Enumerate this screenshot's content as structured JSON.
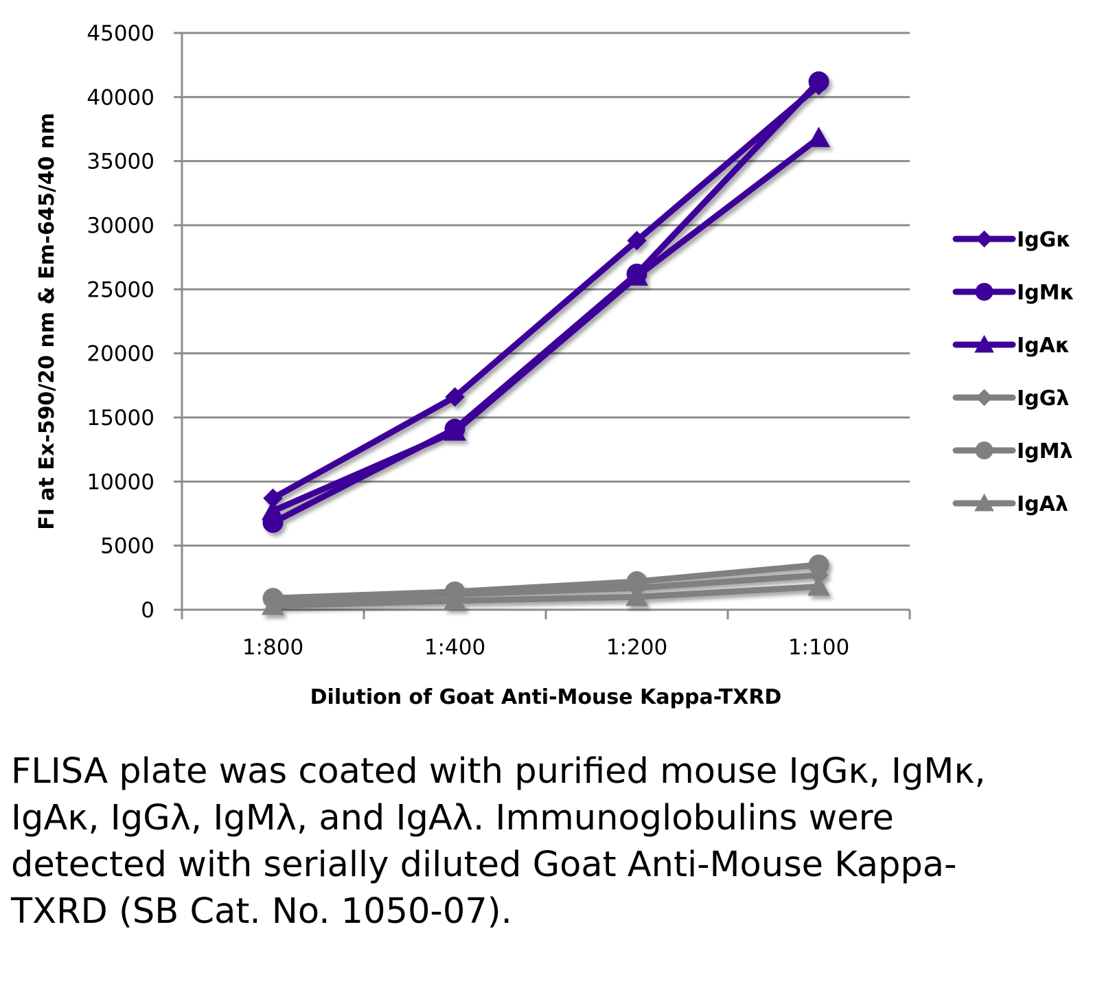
{
  "chart_data": {
    "type": "line",
    "title": "",
    "xlabel": "Dilution of Goat Anti-Mouse Kappa-TXRD",
    "ylabel": "FI at Ex-590/20 nm & Em-645/40 nm",
    "categories": [
      "1:800",
      "1:400",
      "1:200",
      "1:100"
    ],
    "ylim": [
      0,
      45000
    ],
    "yticks": [
      0,
      5000,
      10000,
      15000,
      20000,
      25000,
      30000,
      35000,
      40000,
      45000
    ],
    "grid": true,
    "legend_position": "right",
    "series": [
      {
        "name": "IgGκ",
        "marker": "diamond",
        "color": "#3D0099",
        "values": [
          8700,
          16600,
          28800,
          40900
        ]
      },
      {
        "name": "IgMκ",
        "marker": "circle",
        "color": "#3D0099",
        "values": [
          6800,
          14100,
          26200,
          41200
        ]
      },
      {
        "name": "IgAκ",
        "marker": "triangle",
        "color": "#3D0099",
        "values": [
          7700,
          13900,
          26000,
          36800
        ]
      },
      {
        "name": "IgGλ",
        "marker": "diamond",
        "color": "#808080",
        "values": [
          700,
          1200,
          1700,
          2700
        ]
      },
      {
        "name": "IgMλ",
        "marker": "circle",
        "color": "#808080",
        "values": [
          900,
          1400,
          2200,
          3500
        ]
      },
      {
        "name": "IgAλ",
        "marker": "triangle",
        "color": "#808080",
        "values": [
          300,
          700,
          1000,
          1800
        ]
      }
    ]
  },
  "caption": "FLISA plate was coated with purified mouse IgGκ, IgMκ, IgAκ, IgGλ, IgMλ, and IgAλ. Immunoglobulins were detected with serially diluted Goat Anti-Mouse Kappa-TXRD (SB Cat. No. 1050-07)."
}
